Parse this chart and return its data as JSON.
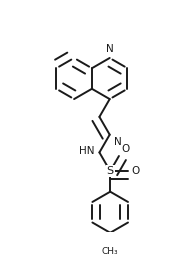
{
  "bg_color": "#ffffff",
  "line_color": "#1a1a1a",
  "line_width": 1.4,
  "doffset": 0.045,
  "figsize": [
    1.89,
    2.59
  ],
  "dpi": 100,
  "xlim": [
    -0.05,
    1.0
  ],
  "ylim": [
    -0.08,
    1.08
  ]
}
